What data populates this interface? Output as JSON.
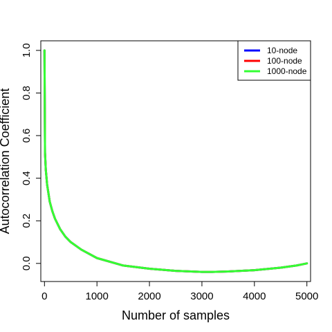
{
  "chart_data": {
    "type": "line",
    "title": "",
    "xlabel": "Number of samples",
    "ylabel": "Autocorrelation Coefficient",
    "xlim": [
      -70,
      5070
    ],
    "ylim": [
      -0.085,
      1.045
    ],
    "x_ticks": [
      0,
      1000,
      2000,
      3000,
      4000,
      5000
    ],
    "y_ticks": [
      0.0,
      0.2,
      0.4,
      0.6,
      0.8,
      1.0
    ],
    "x_tick_labels": [
      "0",
      "1000",
      "2000",
      "3000",
      "4000",
      "5000"
    ],
    "y_tick_labels": [
      "0.0",
      "0.2",
      "0.4",
      "0.6",
      "0.8",
      "1.0"
    ],
    "grid": false,
    "legend_position": "top-right",
    "series": [
      {
        "name": "10-node",
        "color": "#0000ff",
        "x": [
          0,
          10,
          25,
          50,
          100,
          150,
          200,
          300,
          400,
          500,
          700,
          1000,
          1500,
          2000,
          2500,
          3000,
          3200,
          3500,
          4000,
          4500,
          4800,
          5000
        ],
        "values": [
          1.0,
          0.52,
          0.44,
          0.37,
          0.29,
          0.245,
          0.21,
          0.16,
          0.125,
          0.1,
          0.065,
          0.025,
          -0.01,
          -0.025,
          -0.035,
          -0.04,
          -0.04,
          -0.038,
          -0.032,
          -0.02,
          -0.01,
          0.0
        ]
      },
      {
        "name": "100-node",
        "color": "#ff0000",
        "x": [
          0,
          10,
          25,
          50,
          100,
          150,
          200,
          300,
          400,
          500,
          700,
          1000,
          1500,
          2000,
          2500,
          3000,
          3200,
          3500,
          4000,
          4500,
          4800,
          5000
        ],
        "values": [
          1.0,
          0.52,
          0.44,
          0.37,
          0.29,
          0.245,
          0.21,
          0.16,
          0.125,
          0.1,
          0.065,
          0.025,
          -0.01,
          -0.025,
          -0.035,
          -0.04,
          -0.04,
          -0.038,
          -0.032,
          -0.02,
          -0.01,
          0.0
        ]
      },
      {
        "name": "1000-node",
        "color": "#33ff33",
        "x": [
          0,
          10,
          25,
          50,
          100,
          150,
          200,
          300,
          400,
          500,
          700,
          1000,
          1500,
          2000,
          2500,
          3000,
          3200,
          3500,
          4000,
          4500,
          4800,
          5000
        ],
        "values": [
          1.0,
          0.52,
          0.44,
          0.37,
          0.29,
          0.245,
          0.21,
          0.16,
          0.125,
          0.1,
          0.065,
          0.025,
          -0.01,
          -0.025,
          -0.035,
          -0.04,
          -0.04,
          -0.038,
          -0.032,
          -0.02,
          -0.01,
          0.0
        ]
      }
    ]
  }
}
